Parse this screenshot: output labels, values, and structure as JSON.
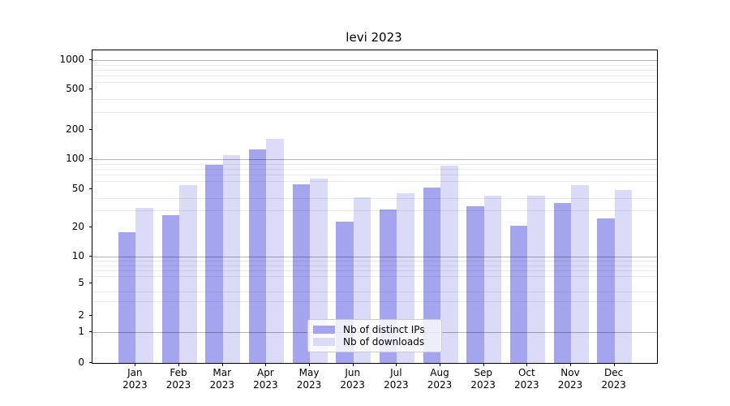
{
  "chart_data": {
    "type": "bar",
    "title": "levi 2023",
    "year_label": "2023",
    "months": [
      "Jan",
      "Feb",
      "Mar",
      "Apr",
      "May",
      "Jun",
      "Jul",
      "Aug",
      "Sep",
      "Oct",
      "Nov",
      "Dec"
    ],
    "categories": [
      "Jan 2023",
      "Feb 2023",
      "Mar 2023",
      "Apr 2023",
      "May 2023",
      "Jun 2023",
      "Jul 2023",
      "Aug 2023",
      "Sep 2023",
      "Oct 2023",
      "Nov 2023",
      "Dec 2023"
    ],
    "series": [
      {
        "name": "Nb of distinct IPs",
        "color": "#a5a5ef",
        "values": [
          18,
          27,
          88,
          127,
          56,
          23,
          31,
          52,
          33,
          21,
          36,
          25
        ]
      },
      {
        "name": "Nb of downloads",
        "color": "#dbdbf7",
        "values": [
          32,
          55,
          110,
          163,
          64,
          41,
          45,
          86,
          43,
          43,
          55,
          49
        ]
      }
    ],
    "yscale": "symlog",
    "ylim": [
      0,
      1300
    ],
    "y_ticks": [
      0,
      1,
      2,
      5,
      10,
      20,
      50,
      100,
      200,
      500,
      1000
    ],
    "y_minor_ticks": [
      3,
      4,
      6,
      7,
      8,
      9,
      30,
      40,
      60,
      70,
      80,
      90,
      300,
      400,
      600,
      700,
      800,
      900
    ],
    "y_major_gridlines": [
      1,
      10,
      100,
      1000
    ],
    "grid": {
      "axis": "y",
      "major": true,
      "minor": true
    },
    "legend_position": "lower-center",
    "xlabel": "",
    "ylabel": ""
  },
  "colors": {
    "background": "#ffffff",
    "spine": "#000000",
    "major_grid": "rgba(0,0,0,0.30)",
    "minor_grid": "rgba(0,0,0,0.08)",
    "legend_border": "#cccccc"
  }
}
